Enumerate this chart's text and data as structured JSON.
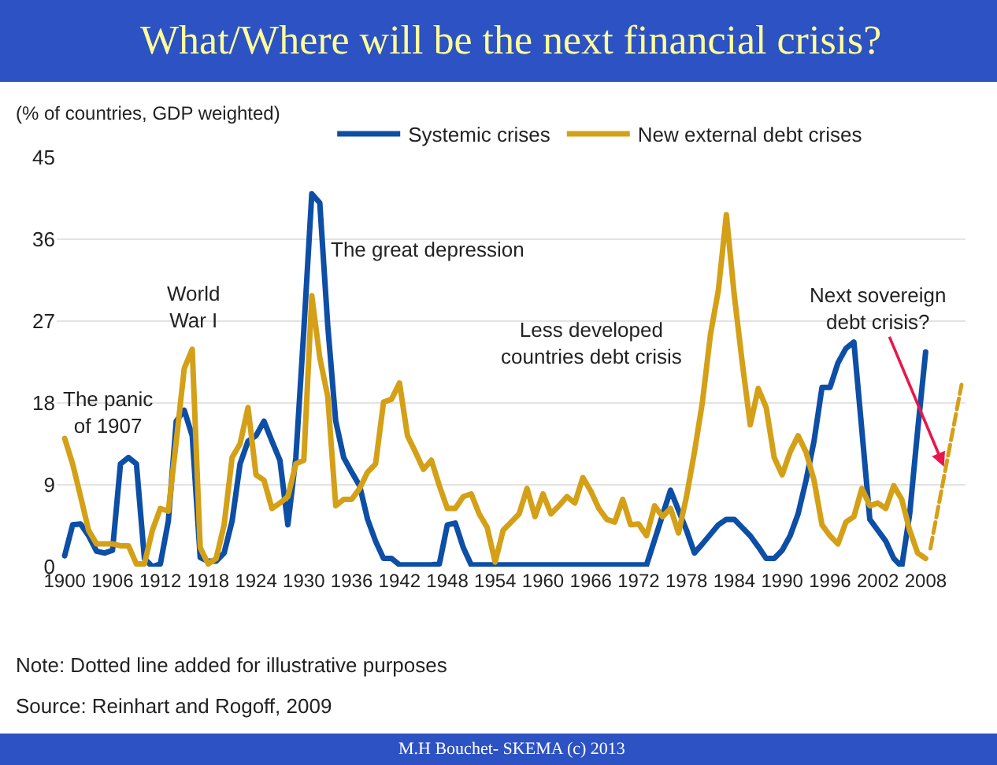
{
  "chart_data": {
    "type": "line",
    "title": "What/Where will be the next financial crisis?",
    "ylabel": "(% of countries, GDP weighted)",
    "xlim": [
      1899,
      2013
    ],
    "xticks": [
      1900,
      1906,
      1912,
      1918,
      1924,
      1930,
      1936,
      1942,
      1948,
      1954,
      1960,
      1966,
      1972,
      1978,
      1984,
      1990,
      1996,
      2002,
      2008
    ],
    "ylim": [
      0,
      45
    ],
    "yticks": [
      0,
      9,
      18,
      27,
      36,
      45
    ],
    "grid": "y",
    "legend": "top",
    "marker": "none",
    "series": [
      {
        "name": "Systemic crises",
        "color": "#0d4ea6",
        "line_style": "solid",
        "x": [
          1900,
          1901,
          1902,
          1903,
          1904,
          1905,
          1906,
          1907,
          1908,
          1909,
          1910,
          1911,
          1912,
          1913,
          1914,
          1915,
          1916,
          1917,
          1918,
          1919,
          1920,
          1921,
          1922,
          1923,
          1924,
          1925,
          1926,
          1927,
          1928,
          1929,
          1930,
          1931,
          1932,
          1933,
          1934,
          1935,
          1936,
          1937,
          1938,
          1939,
          1940,
          1941,
          1942,
          1946,
          1947,
          1948,
          1949,
          1950,
          1951,
          1973,
          1976,
          1978,
          1979,
          1980,
          1982,
          1983,
          1984,
          1985,
          1986,
          1987,
          1988,
          1989,
          1990,
          1991,
          1992,
          1993,
          1994,
          1995,
          1996,
          1997,
          1998,
          1999,
          2000,
          2001,
          2002,
          2003,
          2004,
          2005,
          2006,
          2007,
          2008
        ],
        "values": [
          1.2,
          4.6,
          4.7,
          3.4,
          1.7,
          1.5,
          1.8,
          11.3,
          12,
          11.3,
          0.9,
          0,
          0.3,
          5,
          16,
          17.2,
          14.4,
          1,
          0.6,
          0.6,
          1.5,
          5,
          11.3,
          13.8,
          14.4,
          16,
          13.8,
          11.7,
          4.6,
          12,
          26,
          41,
          40,
          26.5,
          16,
          12,
          10.4,
          8.9,
          5.2,
          2.8,
          0.9,
          0.9,
          0.2,
          0.2,
          0.3,
          4.6,
          4.8,
          2.1,
          0.2,
          0.2,
          8.4,
          4,
          1.5,
          2.5,
          4.6,
          5.2,
          5.2,
          4.3,
          3.4,
          2.2,
          0.9,
          0.9,
          1.8,
          3.4,
          5.8,
          9.5,
          13.8,
          19.7,
          19.7,
          22.4,
          24,
          24.7,
          15,
          5.2,
          4,
          2.8,
          0.9,
          0,
          5.8,
          15,
          23.6
        ]
      },
      {
        "name": "New external debt crises",
        "color": "#d4a017",
        "line_style": "solid",
        "x": [
          1900,
          1901,
          1902,
          1903,
          1904,
          1905,
          1906,
          1907,
          1908,
          1909,
          1910,
          1911,
          1912,
          1913,
          1914,
          1915,
          1916,
          1917,
          1918,
          1919,
          1920,
          1921,
          1922,
          1923,
          1924,
          1925,
          1926,
          1927,
          1928,
          1929,
          1930,
          1931,
          1932,
          1933,
          1934,
          1935,
          1936,
          1937,
          1938,
          1939,
          1940,
          1941,
          1942,
          1943,
          1944,
          1945,
          1946,
          1947,
          1948,
          1949,
          1950,
          1951,
          1952,
          1953,
          1954,
          1955,
          1956,
          1957,
          1958,
          1959,
          1960,
          1961,
          1962,
          1963,
          1964,
          1965,
          1966,
          1967,
          1968,
          1969,
          1970,
          1971,
          1972,
          1973,
          1974,
          1975,
          1976,
          1977,
          1978,
          1979,
          1980,
          1981,
          1982,
          1983,
          1984,
          1985,
          1986,
          1987,
          1988,
          1989,
          1990,
          1991,
          1992,
          1993,
          1994,
          1995,
          1996,
          1997,
          1998,
          1999,
          2000,
          2001,
          2002,
          2003,
          2004,
          2005,
          2006,
          2007,
          2008
        ],
        "values": [
          14.1,
          11.3,
          7.7,
          4,
          2.5,
          2.5,
          2.5,
          2.3,
          2.3,
          0.3,
          0.3,
          4,
          6.4,
          6.1,
          13.8,
          21.8,
          23.9,
          2.1,
          0.3,
          0.9,
          4.6,
          12,
          13.5,
          17.5,
          10.1,
          9.5,
          6.4,
          7,
          7.7,
          11.3,
          11.7,
          29.8,
          23,
          18.7,
          6.7,
          7.4,
          7.4,
          8.6,
          10.4,
          11.3,
          18.1,
          18.4,
          20.2,
          14.4,
          12.6,
          10.7,
          11.7,
          8.9,
          6.4,
          6.4,
          7.7,
          8,
          5.8,
          4.3,
          0.5,
          4,
          4.9,
          5.8,
          8.6,
          5.5,
          8,
          5.8,
          6.7,
          7.7,
          7,
          9.8,
          8.3,
          6.4,
          5.2,
          4.9,
          7.4,
          4.6,
          4.7,
          3.4,
          6.7,
          5.5,
          6.4,
          3.7,
          7.7,
          12.6,
          18.1,
          25.5,
          30.4,
          38.7,
          29.8,
          22.4,
          15.6,
          19.6,
          17.5,
          12,
          10.1,
          12.6,
          14.4,
          12.6,
          9.5,
          4.6,
          3.4,
          2.5,
          4.9,
          5.5,
          8.6,
          6.7,
          7,
          6.4,
          8.9,
          7.4,
          4,
          1.5,
          0.9
        ]
      },
      {
        "color": "#d4a017",
        "line_style": "dashed",
        "x": [
          2008.6,
          2012.5
        ],
        "values": [
          2,
          20
        ]
      }
    ],
    "annotations": [
      "The panic\nof 1907",
      "World\nWar I",
      "The great depression",
      "Less developed\ncountries debt crisis",
      {
        "text": "Next sovereign\ndebt crisis?",
        "x": 2010.3,
        "y": 11
      },
      "Note: Dotted line added for illustrative purposes",
      "Source: Reinhart and Rogoff, 2009",
      "M.H Bouchet- SKEMA (c) 2013"
    ]
  }
}
